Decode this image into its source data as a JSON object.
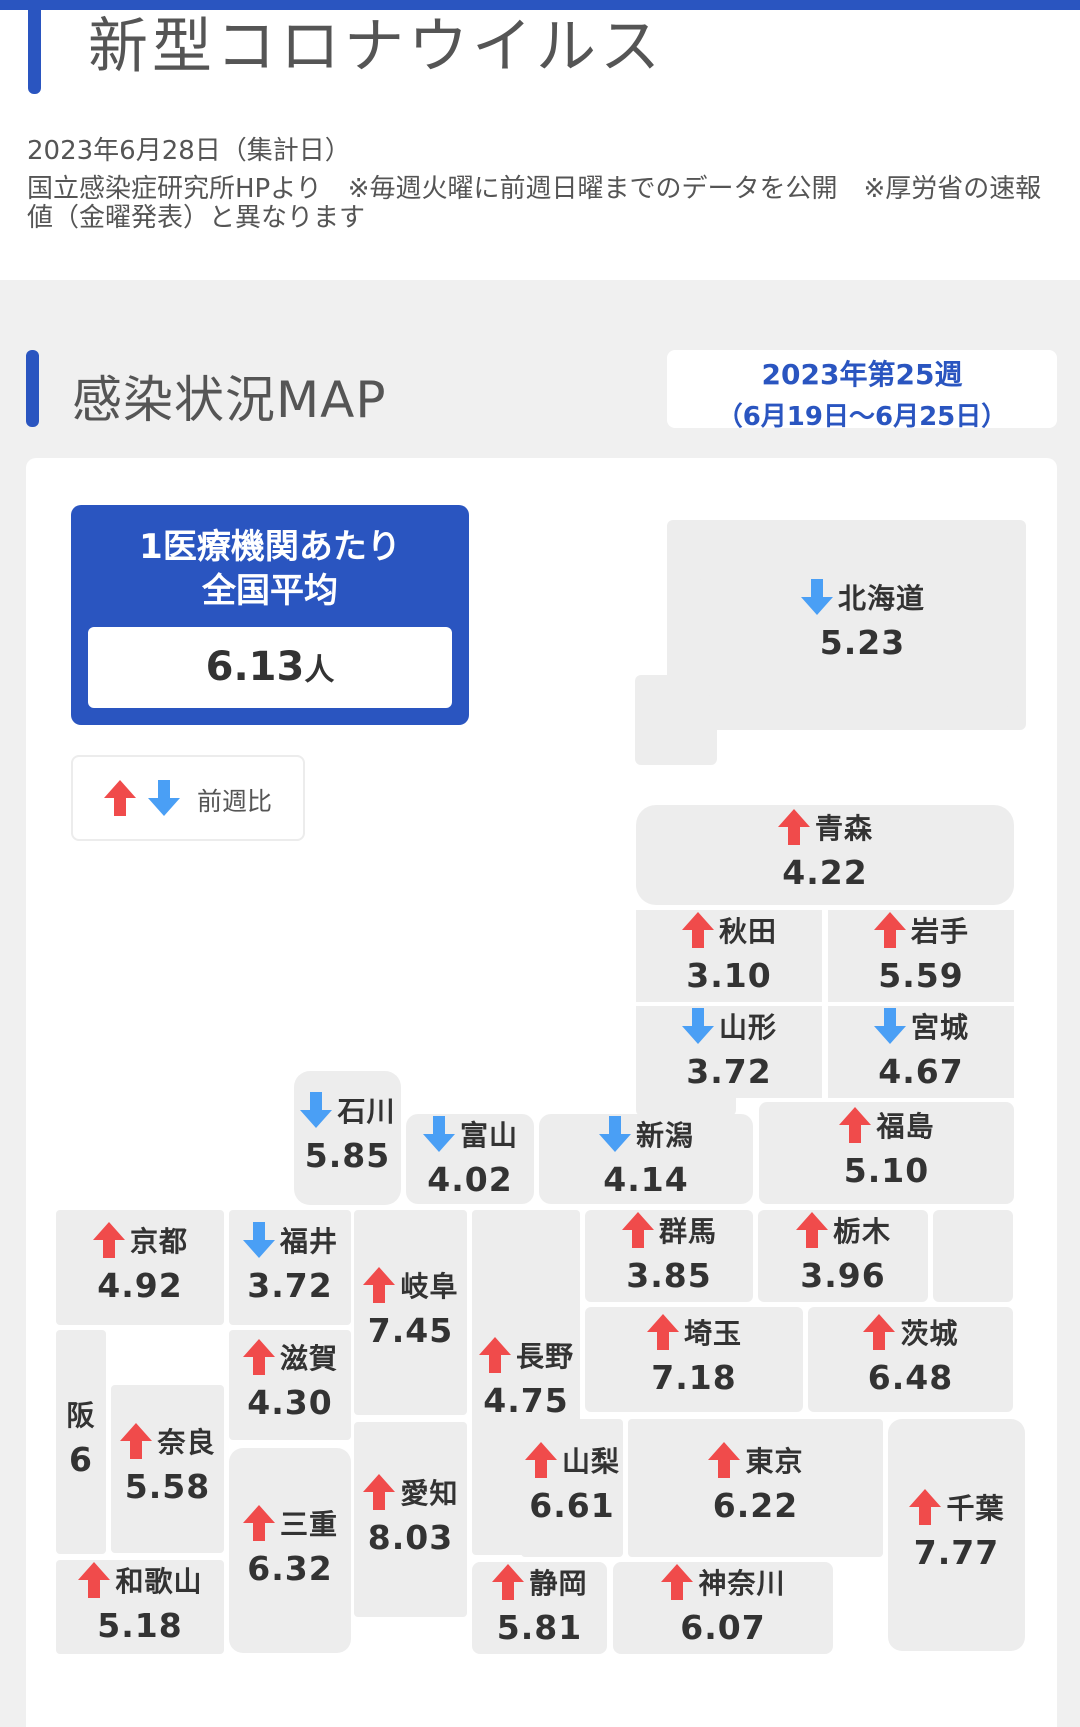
{
  "header": {
    "title": "新型コロナウイルス",
    "date": "2023年6月28日（集計日）",
    "notice": "国立感染症研究所HPより　※毎週火曜に前週日曜までのデータを公開　※厚労省の速報値（金曜発表）と異なります"
  },
  "section": {
    "title": "感染状況MAP",
    "week_line1": "2023年第25週",
    "week_line2": "（6月19日〜6月25日）"
  },
  "average": {
    "title_line1": "1医療機関あたり",
    "title_line2": "全国平均",
    "value": "6.13",
    "unit": "人"
  },
  "legend": {
    "label": "前週比"
  },
  "colors": {
    "accent": "#2a55c0",
    "up": "#f04b4b",
    "down": "#4a9ff5"
  },
  "prefectures": [
    {
      "name": "北海道",
      "value": "5.23",
      "trend": "down"
    },
    {
      "name": "青森",
      "value": "4.22",
      "trend": "up"
    },
    {
      "name": "秋田",
      "value": "3.10",
      "trend": "up"
    },
    {
      "name": "岩手",
      "value": "5.59",
      "trend": "up"
    },
    {
      "name": "山形",
      "value": "3.72",
      "trend": "down"
    },
    {
      "name": "宮城",
      "value": "4.67",
      "trend": "down"
    },
    {
      "name": "石川",
      "value": "5.85",
      "trend": "down"
    },
    {
      "name": "富山",
      "value": "4.02",
      "trend": "down"
    },
    {
      "name": "新潟",
      "value": "4.14",
      "trend": "down"
    },
    {
      "name": "福島",
      "value": "5.10",
      "trend": "up"
    },
    {
      "name": "京都",
      "value": "4.92",
      "trend": "up"
    },
    {
      "name": "福井",
      "value": "3.72",
      "trend": "down"
    },
    {
      "name": "岐阜",
      "value": "7.45",
      "trend": "up"
    },
    {
      "name": "長野",
      "value": "4.75",
      "trend": "up"
    },
    {
      "name": "群馬",
      "value": "3.85",
      "trend": "up"
    },
    {
      "name": "栃木",
      "value": "3.96",
      "trend": "up"
    },
    {
      "name": "滋賀",
      "value": "4.30",
      "trend": "up"
    },
    {
      "name": "埼玉",
      "value": "7.18",
      "trend": "up"
    },
    {
      "name": "茨城",
      "value": "6.48",
      "trend": "up"
    },
    {
      "name": "阪",
      "value": "6",
      "trend": "none"
    },
    {
      "name": "奈良",
      "value": "5.58",
      "trend": "up"
    },
    {
      "name": "愛知",
      "value": "8.03",
      "trend": "up"
    },
    {
      "name": "山梨",
      "value": "6.61",
      "trend": "up"
    },
    {
      "name": "東京",
      "value": "6.22",
      "trend": "up"
    },
    {
      "name": "千葉",
      "value": "7.77",
      "trend": "up"
    },
    {
      "name": "三重",
      "value": "6.32",
      "trend": "up"
    },
    {
      "name": "和歌山",
      "value": "5.18",
      "trend": "up"
    },
    {
      "name": "静岡",
      "value": "5.81",
      "trend": "up"
    },
    {
      "name": "神奈川",
      "value": "6.07",
      "trend": "up"
    }
  ]
}
